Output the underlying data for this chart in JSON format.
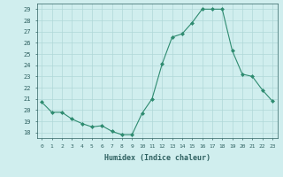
{
  "x": [
    0,
    1,
    2,
    3,
    4,
    5,
    6,
    7,
    8,
    9,
    10,
    11,
    12,
    13,
    14,
    15,
    16,
    17,
    18,
    19,
    20,
    21,
    22,
    23
  ],
  "y": [
    20.7,
    19.8,
    19.8,
    19.2,
    18.8,
    18.5,
    18.6,
    18.1,
    17.8,
    17.8,
    19.7,
    21.0,
    24.1,
    26.5,
    26.8,
    27.8,
    29.0,
    29.0,
    29.0,
    25.3,
    23.2,
    23.0,
    21.8,
    20.8
  ],
  "line_color": "#2e8b70",
  "marker": "D",
  "marker_size": 2.0,
  "bg_color": "#d0eeee",
  "grid_color": "#b0d8d8",
  "xlabel": "Humidex (Indice chaleur)",
  "ylim": [
    17.5,
    29.5
  ],
  "yticks": [
    18,
    19,
    20,
    21,
    22,
    23,
    24,
    25,
    26,
    27,
    28,
    29
  ],
  "xticks": [
    0,
    1,
    2,
    3,
    4,
    5,
    6,
    7,
    8,
    9,
    10,
    11,
    12,
    13,
    14,
    15,
    16,
    17,
    18,
    19,
    20,
    21,
    22,
    23
  ],
  "xtick_labels": [
    "0",
    "1",
    "2",
    "3",
    "4",
    "5",
    "6",
    "7",
    "8",
    "9",
    "10",
    "11",
    "12",
    "13",
    "14",
    "15",
    "16",
    "17",
    "18",
    "19",
    "20",
    "21",
    "22",
    "23"
  ],
  "font_color": "#2e6060"
}
